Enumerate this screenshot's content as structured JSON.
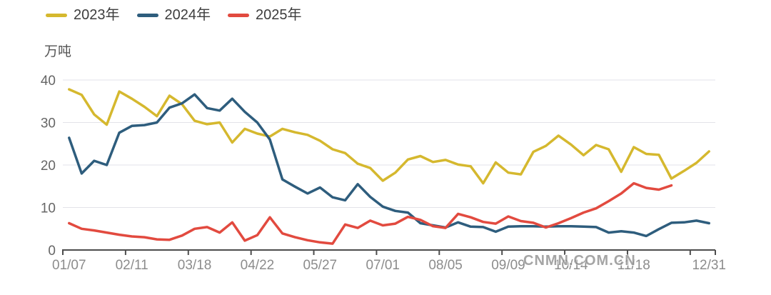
{
  "watermark": "CNMN.COM.CN",
  "chart_data": {
    "type": "line",
    "title": "",
    "unit": "万吨",
    "xlabel": "",
    "ylabel": "万吨",
    "ylim": [
      0,
      40
    ],
    "y_ticks": [
      0,
      10,
      20,
      30,
      40
    ],
    "grid": true,
    "legend_position": "top-left",
    "x_tick_labels": [
      "01/07",
      "02/11",
      "03/18",
      "04/22",
      "05/27",
      "07/01",
      "08/05",
      "09/09",
      "10/14",
      "11/18",
      "12/31"
    ],
    "x_tick_point_indices": [
      0,
      5,
      10,
      15,
      20,
      25,
      30,
      35,
      40,
      45,
      51
    ],
    "n_points": 52,
    "colors": {
      "axis": "#4d4d4d",
      "gridline": "#e3e3e9",
      "y_tick_text": "#666666",
      "x_tick_text": "#8c8c8c"
    },
    "series": [
      {
        "name": "2023年",
        "color": "#d5b82e",
        "values": [
          37.8,
          36.5,
          31.9,
          29.5,
          37.3,
          35.6,
          33.7,
          31.5,
          36.3,
          34.3,
          30.4,
          29.6,
          30.0,
          25.3,
          28.5,
          27.4,
          26.7,
          28.5,
          27.7,
          27.1,
          25.7,
          23.7,
          22.8,
          20.3,
          19.3,
          16.3,
          18.2,
          21.3,
          22.1,
          20.7,
          21.2,
          20.1,
          19.7,
          15.7,
          20.6,
          18.2,
          17.8,
          23.1,
          24.5,
          26.9,
          24.8,
          22.3,
          24.7,
          23.7,
          18.4,
          24.2,
          22.6,
          22.4,
          16.8,
          18.6,
          20.5,
          23.2
        ]
      },
      {
        "name": "2024年",
        "color": "#2e5d7d",
        "values": [
          26.4,
          18.0,
          21.0,
          20.0,
          27.6,
          29.2,
          29.4,
          30.0,
          33.5,
          34.5,
          36.6,
          33.4,
          32.8,
          35.6,
          32.5,
          30.0,
          26.0,
          16.6,
          14.9,
          13.3,
          14.7,
          12.4,
          11.7,
          15.5,
          12.5,
          10.2,
          9.2,
          8.8,
          6.3,
          5.8,
          5.3,
          6.5,
          5.5,
          5.4,
          4.3,
          5.5,
          5.6,
          5.6,
          5.5,
          5.6,
          5.6,
          5.5,
          5.4,
          4.1,
          4.4,
          4.1,
          3.3,
          4.9,
          6.4,
          6.5,
          6.9,
          6.3
        ]
      },
      {
        "name": "2025年",
        "color": "#e24a3f",
        "values": [
          6.3,
          5.0,
          4.6,
          4.1,
          3.6,
          3.2,
          3.0,
          2.5,
          2.4,
          3.4,
          5.0,
          5.4,
          4.1,
          6.5,
          2.2,
          3.5,
          7.7,
          3.9,
          3.0,
          2.3,
          1.8,
          1.5,
          6.0,
          5.2,
          6.9,
          5.8,
          6.2,
          7.8,
          7.1,
          5.6,
          5.2,
          8.5,
          7.7,
          6.6,
          6.2,
          7.9,
          6.8,
          6.4,
          5.3,
          6.3,
          7.5,
          8.8,
          9.8,
          11.5,
          13.3,
          15.7,
          14.6,
          14.2,
          15.2
        ]
      }
    ]
  }
}
